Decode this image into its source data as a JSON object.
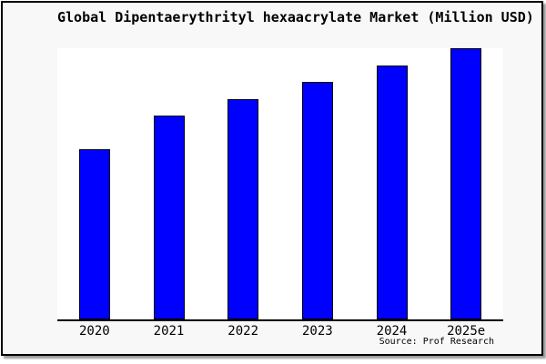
{
  "frame": {
    "background": "#f8f8f8",
    "border_color": "#000000",
    "shadow_color": "#9a9a9a"
  },
  "chart_data": {
    "type": "bar",
    "title": "Global Dipentaerythrityl hexaacrylate Market (Million USD)",
    "categories": [
      "2020",
      "2021",
      "2022",
      "2023",
      "2024",
      "2025e"
    ],
    "values": [
      62.7,
      75.1,
      81.3,
      87.5,
      93.6,
      99.9
    ],
    "ylim": [
      0,
      100
    ],
    "units": "relative bar height, percent of plot area (no y-axis labels shown)",
    "bar_color": "#0000ff",
    "bar_edge_color": "#000000",
    "plot_background": "#ffffff",
    "axis_color": "#000000",
    "grid": false,
    "legend": false,
    "xlabel": "",
    "ylabel": ""
  },
  "source": {
    "label": "Source: Prof Research"
  }
}
